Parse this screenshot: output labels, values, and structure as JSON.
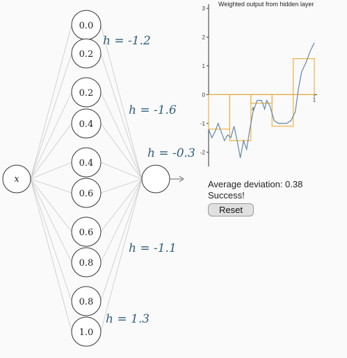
{
  "network": {
    "input_label": "x",
    "hidden_nodes": [
      "0.0",
      "0.2",
      "0.2",
      "0.4",
      "0.4",
      "0.6",
      "0.6",
      "0.8",
      "0.8",
      "1.0"
    ],
    "h_labels": [
      {
        "text": "h = -1.2"
      },
      {
        "text": "h = -1.6"
      },
      {
        "text": "h = -0.3"
      },
      {
        "text": "h = -1.1"
      },
      {
        "text": "h = 1.3"
      }
    ]
  },
  "chart_data": {
    "type": "line",
    "title": "Weighted output from hidden layer",
    "xlabel": "x",
    "xlim": [
      0,
      1
    ],
    "ylim": [
      -2.5,
      3
    ],
    "x_ticks": [
      "1"
    ],
    "y_ticks": [
      "3",
      "2",
      "1",
      "0",
      "-1",
      "-2"
    ],
    "step_color": "#f0b040",
    "curve_color": "#6a8fb0",
    "steps": [
      {
        "x0": 0.0,
        "x1": 0.2,
        "y": -1.2
      },
      {
        "x0": 0.2,
        "x1": 0.4,
        "y": -1.6
      },
      {
        "x0": 0.4,
        "x1": 0.6,
        "y": -0.3
      },
      {
        "x0": 0.6,
        "x1": 0.8,
        "y": -1.1
      },
      {
        "x0": 0.8,
        "x1": 1.0,
        "y": 1.25
      }
    ],
    "curve": [
      [
        0.0,
        -1.2
      ],
      [
        0.03,
        -1.5
      ],
      [
        0.06,
        -1.3
      ],
      [
        0.09,
        -1.0
      ],
      [
        0.12,
        -1.3
      ],
      [
        0.15,
        -1.6
      ],
      [
        0.18,
        -1.4
      ],
      [
        0.21,
        -1.5
      ],
      [
        0.24,
        -1.1
      ],
      [
        0.27,
        -1.6
      ],
      [
        0.3,
        -2.2
      ],
      [
        0.33,
        -1.6
      ],
      [
        0.36,
        -1.9
      ],
      [
        0.39,
        -1.2
      ],
      [
        0.42,
        -0.6
      ],
      [
        0.46,
        -0.2
      ],
      [
        0.5,
        -0.2
      ],
      [
        0.53,
        -0.5
      ],
      [
        0.55,
        -0.2
      ],
      [
        0.58,
        -0.4
      ],
      [
        0.62,
        -0.9
      ],
      [
        0.66,
        -1.0
      ],
      [
        0.7,
        -1.0
      ],
      [
        0.74,
        -1.0
      ],
      [
        0.78,
        -0.9
      ],
      [
        0.82,
        -0.6
      ],
      [
        0.85,
        0.2
      ],
      [
        0.88,
        0.8
      ],
      [
        0.92,
        1.1
      ],
      [
        0.96,
        1.5
      ],
      [
        1.0,
        1.8
      ]
    ]
  },
  "status": {
    "deviation_text": "Average deviation: 0.38",
    "success_text": "Success!",
    "reset_label": "Reset"
  }
}
